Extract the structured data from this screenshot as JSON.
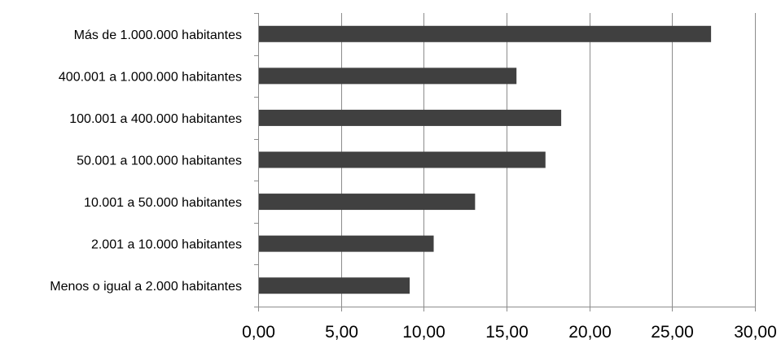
{
  "chart_data": {
    "type": "bar",
    "orientation": "horizontal",
    "title": "",
    "xlabel": "",
    "ylabel": "",
    "categories": [
      "Más de 1.000.000 habitantes",
      "400.001 a 1.000.000 habitantes",
      "100.001 a 400.000 habitantes",
      "50.001 a 100.000 habitantes",
      "10.001 a 50.000 habitantes",
      "2.001 a 10.000 habitantes",
      "Menos o igual a 2.000 habitantes"
    ],
    "values": [
      27.35,
      15.6,
      18.3,
      17.35,
      13.1,
      10.6,
      9.15
    ],
    "xlim": [
      0,
      30
    ],
    "xticks": [
      "0,00",
      "5,00",
      "10,00",
      "15,00",
      "20,00",
      "25,00",
      "30,00"
    ],
    "grid": "vertical",
    "legend": "none",
    "colors": {
      "bar": "#404040",
      "grid": "#8c8c8c",
      "axis": "#8c8c8c"
    }
  }
}
